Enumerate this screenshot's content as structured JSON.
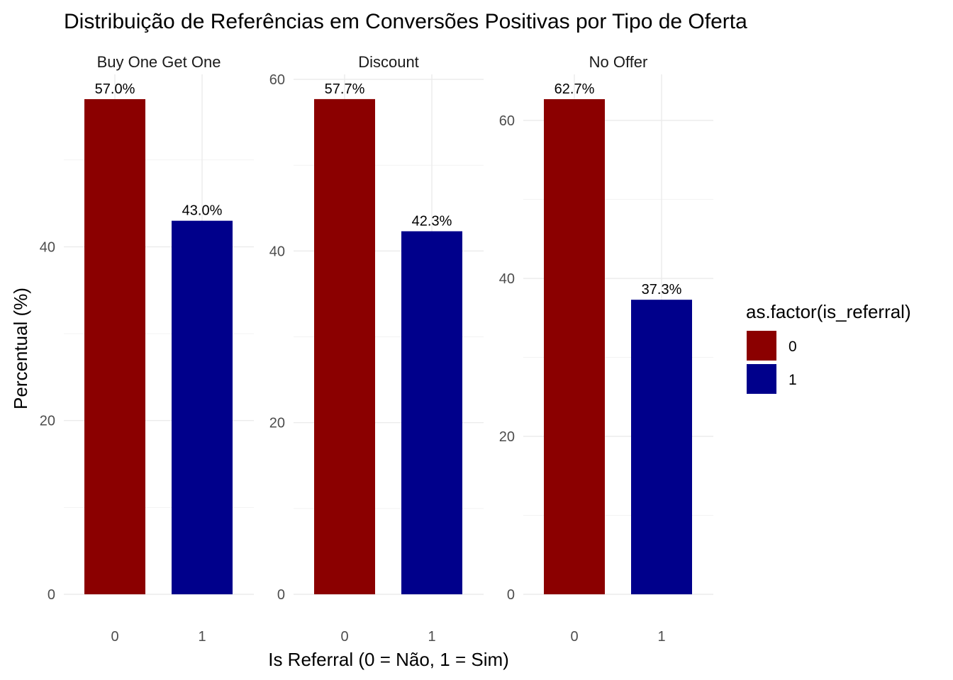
{
  "chart_data": {
    "type": "bar",
    "title": "Distribuição de Referências em Conversões Positivas por Tipo de Oferta",
    "xlabel": "Is Referral (0 = Não, 1 = Sim)",
    "ylabel": "Percentual (%)",
    "categories": [
      "0",
      "1"
    ],
    "grid": true,
    "legend": {
      "title": "as.factor(is_referral)",
      "position": "right",
      "entries": [
        {
          "label": "0",
          "color": "#8B0000"
        },
        {
          "label": "1",
          "color": "#00008B"
        }
      ]
    },
    "facets": [
      {
        "name": "Buy One Get One",
        "values": [
          57.0,
          43.0
        ],
        "labels": [
          "57.0%",
          "43.0%"
        ],
        "ylim": [
          0,
          59.85
        ],
        "yticks": [
          0,
          20,
          40
        ]
      },
      {
        "name": "Discount",
        "values": [
          57.7,
          42.3
        ],
        "labels": [
          "57.7%",
          "42.3%"
        ],
        "ylim": [
          0,
          60.58
        ],
        "yticks": [
          0,
          20,
          40,
          60
        ]
      },
      {
        "name": "No Offer",
        "values": [
          62.7,
          37.3
        ],
        "labels": [
          "62.7%",
          "37.3%"
        ],
        "ylim": [
          0,
          65.84
        ],
        "yticks": [
          0,
          20,
          40,
          60
        ]
      }
    ]
  }
}
